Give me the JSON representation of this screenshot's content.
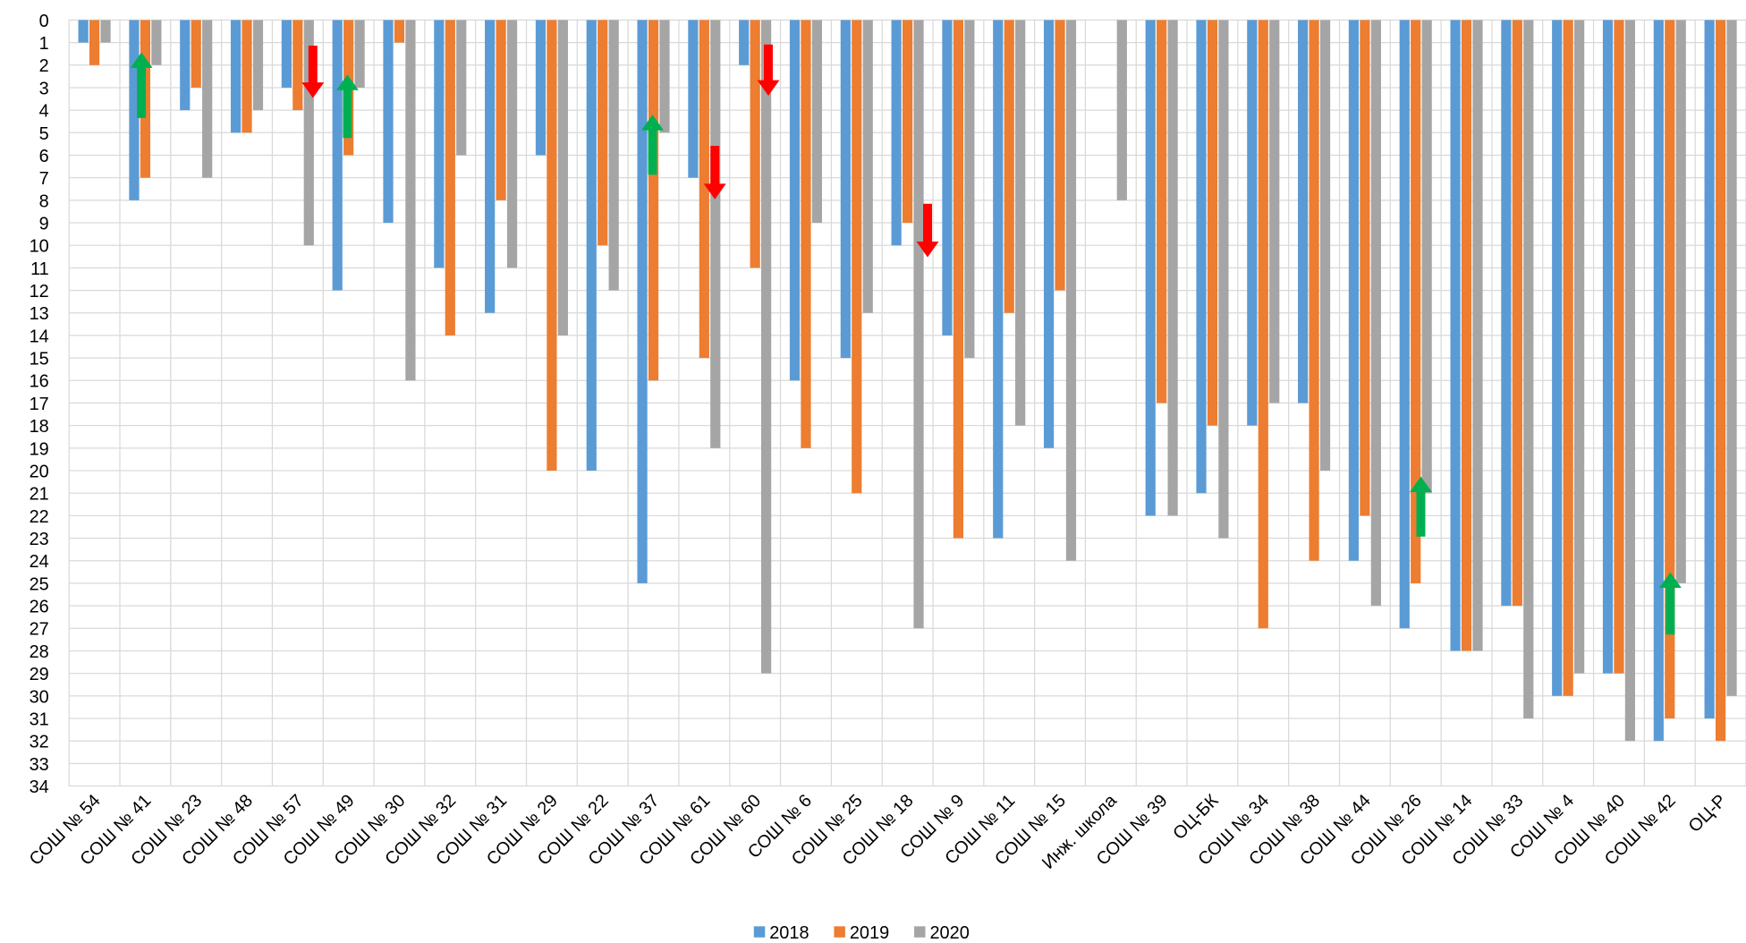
{
  "chart_data": {
    "type": "bar",
    "categories": [
      "СОШ № 54",
      "СОШ № 41",
      "СОШ № 23",
      "СОШ № 48",
      "СОШ № 57",
      "СОШ № 49",
      "СОШ № 30",
      "СОШ № 32",
      "СОШ № 31",
      "СОШ № 29",
      "СОШ № 22",
      "СОШ № 37",
      "СОШ № 61",
      "СОШ № 60",
      "СОШ № 6",
      "СОШ № 25",
      "СОШ № 18",
      "СОШ № 9",
      "СОШ № 11",
      "СОШ № 15",
      "Инж. школа",
      "СОШ № 39",
      "ОЦ-БК",
      "СОШ № 34",
      "СОШ № 38",
      "СОШ № 44",
      "СОШ № 26",
      "СОШ № 14",
      "СОШ № 33",
      "СОШ № 4",
      "СОШ № 40",
      "СОШ № 42",
      "ОЦ-Р"
    ],
    "series": [
      {
        "name": "2018",
        "color": "#5b9bd5",
        "values": [
          1,
          8,
          4,
          5,
          3,
          12,
          9,
          11,
          13,
          6,
          20,
          25,
          7,
          2,
          16,
          15,
          10,
          14,
          23,
          19,
          null,
          22,
          21,
          18,
          17,
          24,
          27,
          28,
          26,
          30,
          29,
          32,
          31
        ]
      },
      {
        "name": "2019",
        "color": "#ed7d31",
        "values": [
          2,
          7,
          3,
          5,
          4,
          6,
          1,
          14,
          8,
          20,
          10,
          16,
          15,
          11,
          19,
          21,
          9,
          23,
          13,
          12,
          null,
          17,
          18,
          27,
          24,
          22,
          25,
          28,
          26,
          30,
          29,
          31,
          32
        ]
      },
      {
        "name": "2020",
        "color": "#a5a5a5",
        "values": [
          1,
          2,
          7,
          4,
          10,
          3,
          16,
          6,
          11,
          14,
          12,
          5,
          19,
          29,
          9,
          13,
          27,
          15,
          18,
          24,
          8,
          22,
          23,
          17,
          20,
          26,
          21,
          28,
          31,
          29,
          32,
          25,
          30
        ]
      }
    ],
    "ylim": [
      0,
      34
    ],
    "y_inverted": true,
    "yticks": [
      0,
      1,
      2,
      3,
      4,
      5,
      6,
      7,
      8,
      9,
      10,
      11,
      12,
      13,
      14,
      15,
      16,
      17,
      18,
      19,
      20,
      21,
      22,
      23,
      24,
      25,
      26,
      27,
      28,
      29,
      30,
      31,
      32,
      33,
      34
    ],
    "grid": true,
    "legend": "bottom"
  }
}
